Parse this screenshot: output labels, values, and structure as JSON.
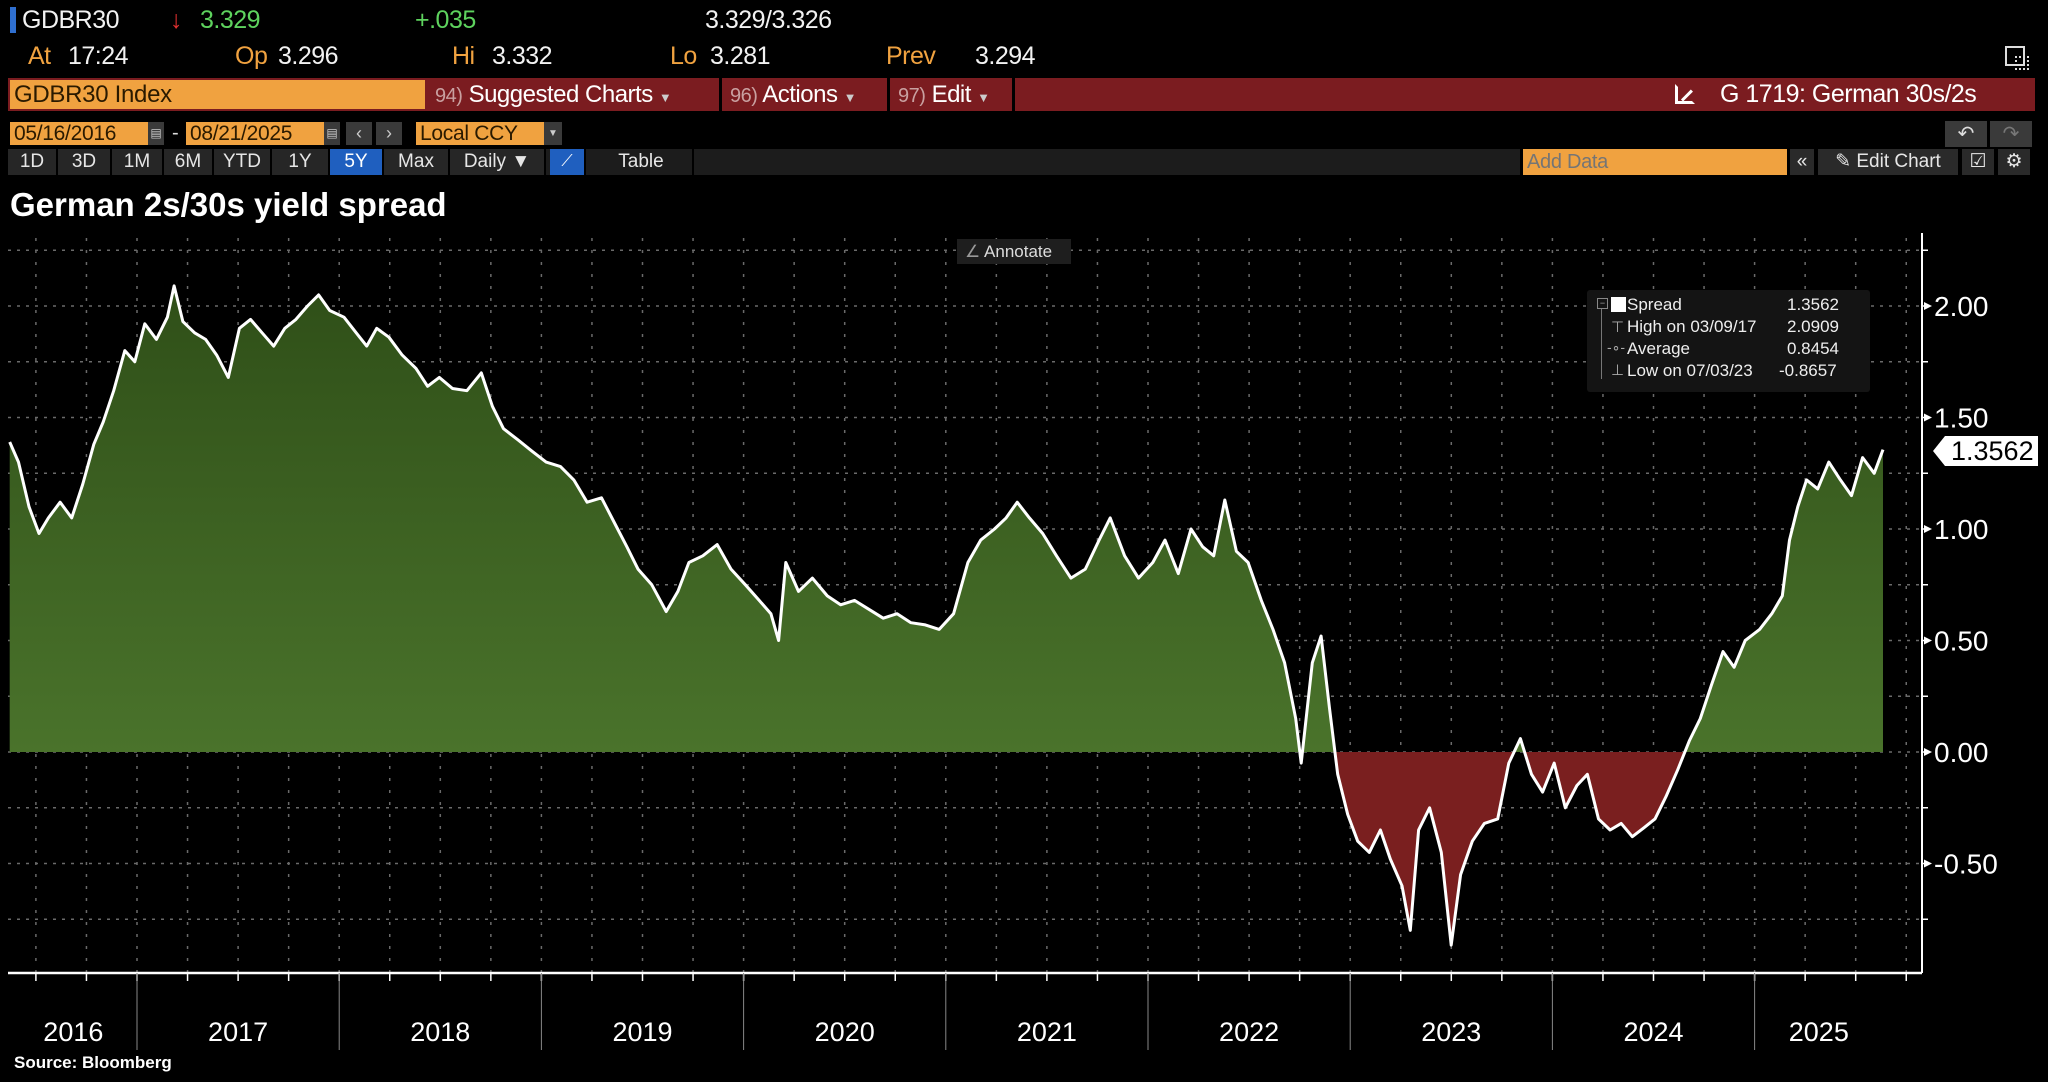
{
  "quote": {
    "ticker": "GDBR30",
    "last": "3.329",
    "change": "+.035",
    "bid_ask": "3.329/3.326",
    "at_label": "At",
    "at_value": "17:24",
    "open_label": "Op",
    "open_value": "3.296",
    "high_label": "Hi",
    "high_value": "3.332",
    "low_label": "Lo",
    "low_value": "3.281",
    "prev_label": "Prev",
    "prev_value": "3.294",
    "direction": "down"
  },
  "menubar": {
    "security": "GDBR30 Index",
    "items": [
      {
        "num": "94)",
        "label": "Suggested Charts"
      },
      {
        "num": "96)",
        "label": "Actions"
      },
      {
        "num": "97)",
        "label": "Edit"
      }
    ],
    "chart_ref": "G 1719: German 30s/2s"
  },
  "range": {
    "start": "05/16/2016",
    "separator": "-",
    "end": "08/21/2025",
    "currency": "Local CCY"
  },
  "periods": [
    "1D",
    "3D",
    "1M",
    "6M",
    "YTD",
    "1Y",
    "5Y",
    "Max"
  ],
  "active_period": "5Y",
  "frequency": "Daily ▼",
  "table_label": "Table",
  "add_data_placeholder": "Add Data",
  "edit_chart_label": "Edit Chart",
  "annotate_label": "Annotate",
  "source": "Source: Bloomberg",
  "colors": {
    "orange": "#f0a240",
    "menu_red": "#7b1c20",
    "positive_fill": "#4a7a2a",
    "negative_fill": "#7a1f1f",
    "line": "#ffffff",
    "active_tab": "#1f5fbf"
  },
  "legend": {
    "series": {
      "label": "Spread",
      "value": "1.3562"
    },
    "high": {
      "label": "High on 03/09/17",
      "value": "2.0909"
    },
    "average": {
      "label": "Average",
      "value": "0.8454"
    },
    "low": {
      "label": "Low on 07/03/23",
      "value": "-0.8657"
    }
  },
  "chart_data": {
    "type": "area",
    "title": "German 2s/30s yield spread",
    "xlabel": "",
    "ylabel": "",
    "ylim": [
      -0.97,
      2.3
    ],
    "xlim": [
      "2016-05-16",
      "2025-08-21"
    ],
    "grid": true,
    "y_ticks": [
      "2.00",
      "1.50",
      "1.00",
      "0.50",
      "0.00",
      "-0.50"
    ],
    "x_ticks": [
      "2016",
      "2017",
      "2018",
      "2019",
      "2020",
      "2021",
      "2022",
      "2023",
      "2024",
      "2025"
    ],
    "last_value_label": "1.3562",
    "series": [
      {
        "name": "Spread",
        "points": [
          [
            "2016-05-16",
            1.39
          ],
          [
            "2016-06-01",
            1.3
          ],
          [
            "2016-06-20",
            1.1
          ],
          [
            "2016-07-08",
            0.98
          ],
          [
            "2016-07-25",
            1.05
          ],
          [
            "2016-08-15",
            1.12
          ],
          [
            "2016-09-05",
            1.05
          ],
          [
            "2016-09-25",
            1.2
          ],
          [
            "2016-10-15",
            1.38
          ],
          [
            "2016-11-01",
            1.48
          ],
          [
            "2016-11-20",
            1.62
          ],
          [
            "2016-12-10",
            1.8
          ],
          [
            "2016-12-28",
            1.75
          ],
          [
            "2017-01-15",
            1.92
          ],
          [
            "2017-02-05",
            1.85
          ],
          [
            "2017-02-25",
            1.95
          ],
          [
            "2017-03-09",
            2.09
          ],
          [
            "2017-03-25",
            1.93
          ],
          [
            "2017-04-15",
            1.88
          ],
          [
            "2017-05-05",
            1.85
          ],
          [
            "2017-05-25",
            1.78
          ],
          [
            "2017-06-15",
            1.68
          ],
          [
            "2017-07-05",
            1.9
          ],
          [
            "2017-07-25",
            1.94
          ],
          [
            "2017-08-15",
            1.88
          ],
          [
            "2017-09-05",
            1.82
          ],
          [
            "2017-09-25",
            1.9
          ],
          [
            "2017-10-15",
            1.94
          ],
          [
            "2017-11-05",
            2.0
          ],
          [
            "2017-11-25",
            2.05
          ],
          [
            "2017-12-15",
            1.98
          ],
          [
            "2018-01-10",
            1.95
          ],
          [
            "2018-02-01",
            1.88
          ],
          [
            "2018-02-20",
            1.82
          ],
          [
            "2018-03-10",
            1.9
          ],
          [
            "2018-04-01",
            1.86
          ],
          [
            "2018-04-25",
            1.78
          ],
          [
            "2018-05-20",
            1.72
          ],
          [
            "2018-06-10",
            1.64
          ],
          [
            "2018-07-01",
            1.68
          ],
          [
            "2018-07-25",
            1.63
          ],
          [
            "2018-08-20",
            1.62
          ],
          [
            "2018-09-15",
            1.7
          ],
          [
            "2018-10-05",
            1.55
          ],
          [
            "2018-10-25",
            1.45
          ],
          [
            "2018-11-20",
            1.4
          ],
          [
            "2018-12-15",
            1.35
          ],
          [
            "2019-01-10",
            1.3
          ],
          [
            "2019-02-05",
            1.28
          ],
          [
            "2019-03-01",
            1.22
          ],
          [
            "2019-03-25",
            1.12
          ],
          [
            "2019-04-20",
            1.14
          ],
          [
            "2019-05-15",
            1.02
          ],
          [
            "2019-06-05",
            0.92
          ],
          [
            "2019-06-25",
            0.82
          ],
          [
            "2019-07-20",
            0.75
          ],
          [
            "2019-08-15",
            0.63
          ],
          [
            "2019-09-05",
            0.72
          ],
          [
            "2019-09-25",
            0.85
          ],
          [
            "2019-10-20",
            0.88
          ],
          [
            "2019-11-15",
            0.93
          ],
          [
            "2019-12-10",
            0.82
          ],
          [
            "2020-01-05",
            0.75
          ],
          [
            "2020-01-30",
            0.68
          ],
          [
            "2020-02-20",
            0.62
          ],
          [
            "2020-03-05",
            0.5
          ],
          [
            "2020-03-18",
            0.85
          ],
          [
            "2020-04-10",
            0.72
          ],
          [
            "2020-05-05",
            0.78
          ],
          [
            "2020-06-01",
            0.7
          ],
          [
            "2020-06-25",
            0.66
          ],
          [
            "2020-07-20",
            0.68
          ],
          [
            "2020-08-15",
            0.64
          ],
          [
            "2020-09-10",
            0.6
          ],
          [
            "2020-10-05",
            0.62
          ],
          [
            "2020-10-30",
            0.58
          ],
          [
            "2020-11-25",
            0.57
          ],
          [
            "2020-12-20",
            0.55
          ],
          [
            "2021-01-15",
            0.62
          ],
          [
            "2021-02-10",
            0.85
          ],
          [
            "2021-03-05",
            0.95
          ],
          [
            "2021-03-30",
            1.0
          ],
          [
            "2021-04-20",
            1.05
          ],
          [
            "2021-05-10",
            1.12
          ],
          [
            "2021-06-01",
            1.05
          ],
          [
            "2021-06-25",
            0.98
          ],
          [
            "2021-07-20",
            0.88
          ],
          [
            "2021-08-15",
            0.78
          ],
          [
            "2021-09-10",
            0.82
          ],
          [
            "2021-10-05",
            0.95
          ],
          [
            "2021-10-25",
            1.05
          ],
          [
            "2021-11-20",
            0.88
          ],
          [
            "2021-12-15",
            0.78
          ],
          [
            "2022-01-10",
            0.85
          ],
          [
            "2022-02-01",
            0.95
          ],
          [
            "2022-02-25",
            0.8
          ],
          [
            "2022-03-20",
            1.0
          ],
          [
            "2022-04-10",
            0.92
          ],
          [
            "2022-04-30",
            0.88
          ],
          [
            "2022-05-20",
            1.13
          ],
          [
            "2022-06-10",
            0.9
          ],
          [
            "2022-07-01",
            0.85
          ],
          [
            "2022-07-25",
            0.68
          ],
          [
            "2022-08-15",
            0.55
          ],
          [
            "2022-09-05",
            0.4
          ],
          [
            "2022-09-25",
            0.15
          ],
          [
            "2022-10-05",
            -0.05
          ],
          [
            "2022-10-25",
            0.4
          ],
          [
            "2022-11-10",
            0.52
          ],
          [
            "2022-11-25",
            0.2
          ],
          [
            "2022-12-10",
            -0.1
          ],
          [
            "2022-12-28",
            -0.28
          ],
          [
            "2023-01-15",
            -0.4
          ],
          [
            "2023-02-05",
            -0.45
          ],
          [
            "2023-02-25",
            -0.35
          ],
          [
            "2023-03-15",
            -0.48
          ],
          [
            "2023-04-05",
            -0.6
          ],
          [
            "2023-04-20",
            -0.8
          ],
          [
            "2023-05-05",
            -0.35
          ],
          [
            "2023-05-25",
            -0.25
          ],
          [
            "2023-06-15",
            -0.45
          ],
          [
            "2023-07-03",
            -0.8657
          ],
          [
            "2023-07-20",
            -0.55
          ],
          [
            "2023-08-10",
            -0.4
          ],
          [
            "2023-09-01",
            -0.32
          ],
          [
            "2023-09-25",
            -0.3
          ],
          [
            "2023-10-15",
            -0.05
          ],
          [
            "2023-11-05",
            0.06
          ],
          [
            "2023-11-25",
            -0.1
          ],
          [
            "2023-12-15",
            -0.18
          ],
          [
            "2024-01-05",
            -0.05
          ],
          [
            "2024-01-25",
            -0.25
          ],
          [
            "2024-02-15",
            -0.15
          ],
          [
            "2024-03-05",
            -0.1
          ],
          [
            "2024-03-25",
            -0.3
          ],
          [
            "2024-04-15",
            -0.35
          ],
          [
            "2024-05-05",
            -0.32
          ],
          [
            "2024-05-25",
            -0.38
          ],
          [
            "2024-06-15",
            -0.34
          ],
          [
            "2024-07-05",
            -0.3
          ],
          [
            "2024-07-25",
            -0.2
          ],
          [
            "2024-08-15",
            -0.08
          ],
          [
            "2024-09-05",
            0.05
          ],
          [
            "2024-09-25",
            0.15
          ],
          [
            "2024-10-15",
            0.3
          ],
          [
            "2024-11-05",
            0.45
          ],
          [
            "2024-11-25",
            0.38
          ],
          [
            "2024-12-15",
            0.5
          ],
          [
            "2025-01-10",
            0.55
          ],
          [
            "2025-02-01",
            0.62
          ],
          [
            "2025-02-20",
            0.7
          ],
          [
            "2025-03-05",
            0.95
          ],
          [
            "2025-03-20",
            1.1
          ],
          [
            "2025-04-05",
            1.22
          ],
          [
            "2025-04-25",
            1.18
          ],
          [
            "2025-05-15",
            1.3
          ],
          [
            "2025-06-05",
            1.22
          ],
          [
            "2025-06-25",
            1.15
          ],
          [
            "2025-07-15",
            1.32
          ],
          [
            "2025-08-05",
            1.25
          ],
          [
            "2025-08-21",
            1.3562
          ]
        ]
      }
    ]
  }
}
